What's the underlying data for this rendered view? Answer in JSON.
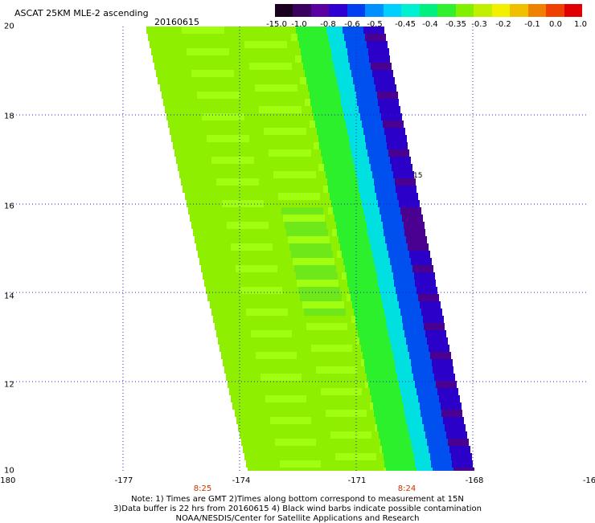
{
  "header": {
    "title": "ASCAT 25KM MLE-2 ascending",
    "date": "20160615"
  },
  "colorbar": {
    "labels": [
      "-15.0",
      "-1.0",
      "-0.8",
      "-0.6",
      "-0.5",
      "-0.45",
      "-0.4",
      "-0.35",
      "-0.3",
      "-0.2",
      "-0.1",
      "0.0",
      "1.0"
    ],
    "colors": [
      "#1a0020",
      "#3a0060",
      "#5a00a0",
      "#3000d0",
      "#0040f0",
      "#0090ff",
      "#00d0ff",
      "#00f0d0",
      "#00f080",
      "#30f030",
      "#80f000",
      "#c0f000",
      "#f0f000",
      "#f0c000",
      "#f08000",
      "#f04000",
      "#e00000"
    ]
  },
  "map": {
    "x_ticks": [
      "-180",
      "-177",
      "-174",
      "-171",
      "-168",
      "-16"
    ],
    "y_ticks": [
      "20",
      "18",
      "16",
      "14",
      "12",
      "10"
    ],
    "time_labels": [
      "8:25",
      "8:24"
    ],
    "barb_marker": "15",
    "colors": {
      "swath_main": "#8ef000",
      "swath_light": "#a0ff10",
      "swath_mid": "#6fe81a",
      "green": "#2df02d",
      "cyan": "#00e0e0",
      "blue": "#0050f0",
      "deepblue": "#2b00c8",
      "purple": "#4a0090",
      "grid": "#2020d0"
    }
  },
  "footer": {
    "line1": "Note: 1) Times are GMT 2)Times along bottom correspond to measurement at 15N",
    "line2": "3)Data buffer is 22 hrs from 20160615 4) Black wind barbs indicate possible contamination",
    "line3": "NOAA/NESDIS/Center for Satellite Applications and Research"
  }
}
